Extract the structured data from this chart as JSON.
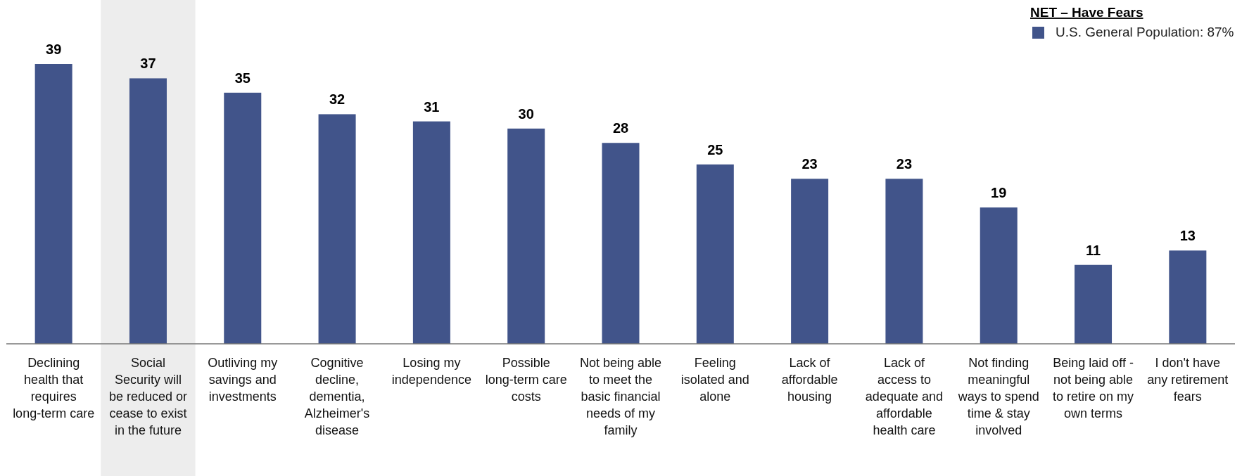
{
  "chart_data": {
    "type": "bar",
    "legend_title": "NET – Have Fears",
    "legend": "top right",
    "data_labels": true,
    "categories": [
      "Declining health that requires long-term care",
      "Social Security will be reduced or cease to exist in the future",
      "Outliving my savings and investments",
      "Cognitive decline, dementia, Alzheimer's disease",
      "Losing my independence",
      "Possible long-term care costs",
      "Not being able to meet the basic financial needs of my family",
      "Feeling isolated and alone",
      "Lack of affordable housing",
      "Lack of access to adequate and affordable health care",
      "Not finding meaningful ways to spend time & stay involved",
      "Being laid off - not being able to retire on my own terms",
      "I don't have any retirement fears"
    ],
    "series": [
      {
        "name": "U.S. General Population: 87%",
        "color": "#41548a",
        "values": [
          39,
          37,
          35,
          32,
          31,
          30,
          28,
          25,
          23,
          23,
          19,
          11,
          13
        ]
      }
    ],
    "bands": [
      {
        "axis": "x",
        "from": "Social Security will be reduced or cease to exist in the future",
        "to": "Social Security will be reduced or cease to exist in the future",
        "color": "#ededed"
      }
    ]
  }
}
